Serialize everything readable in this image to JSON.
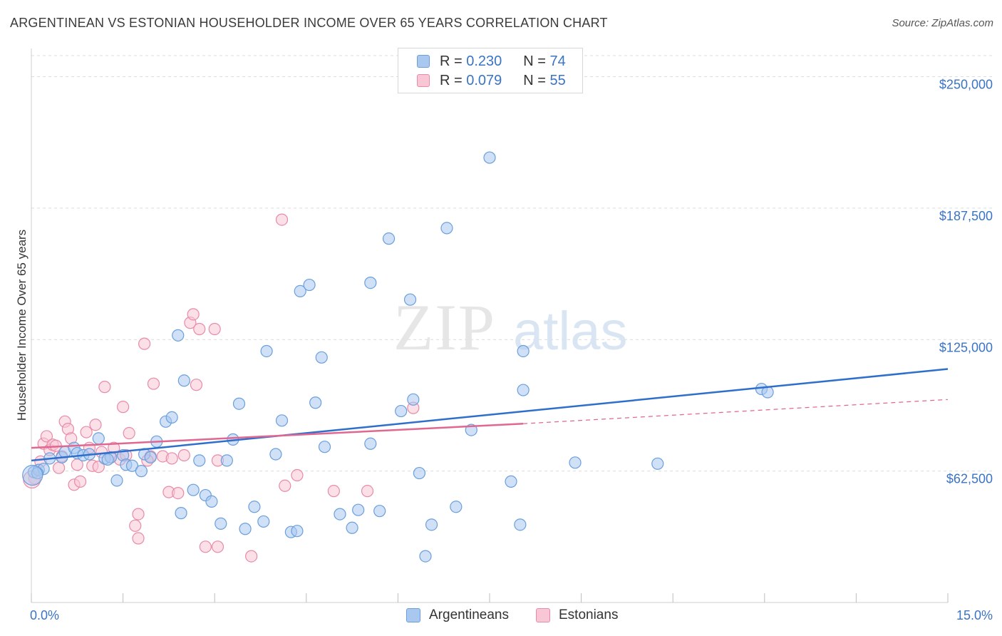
{
  "title": "ARGENTINEAN VS ESTONIAN HOUSEHOLDER INCOME OVER 65 YEARS CORRELATION CHART",
  "source": "Source: ZipAtlas.com",
  "watermark": {
    "zip": "ZIP",
    "atlas": "atlas"
  },
  "legend": {
    "r_label": "R =",
    "n_label": "N =",
    "rows": [
      {
        "series": "Argentineans",
        "r": "0.230",
        "n": "74",
        "color": "#a9c8f0",
        "edge": "#6a9fdc"
      },
      {
        "series": "Estonians",
        "r": "0.079",
        "n": "55",
        "color": "#f9c6d6",
        "edge": "#e88aa8"
      }
    ]
  },
  "bottom_legend": [
    {
      "label": "Argentineans",
      "color": "#a9c8f0",
      "edge": "#6a9fdc"
    },
    {
      "label": "Estonians",
      "color": "#f9c6d6",
      "edge": "#e88aa8"
    }
  ],
  "chart_data": {
    "type": "scatter",
    "title": "ARGENTINEAN VS ESTONIAN HOUSEHOLDER INCOME OVER 65 YEARS CORRELATION CHART",
    "xlabel": "",
    "ylabel": "Householder Income Over 65 years",
    "xlim": [
      0,
      15
    ],
    "ylim": [
      0,
      260000
    ],
    "x_tick_labels": [
      {
        "value": 0,
        "label": "0.0%"
      },
      {
        "value": 15,
        "label": "15.0%"
      }
    ],
    "y_ticks": [
      {
        "value": 62500,
        "label": "$62,500"
      },
      {
        "value": 125000,
        "label": "$125,000"
      },
      {
        "value": 187500,
        "label": "$187,500"
      },
      {
        "value": 250000,
        "label": "$250,000"
      }
    ],
    "grid": true,
    "series": [
      {
        "name": "Argentineans",
        "color": "#6a9fdc",
        "fill": "#a9c8f0",
        "line_color": "#2f6fcc",
        "trend": {
          "x0": 0,
          "y0": 67500,
          "x1": 15,
          "y1": 111000
        },
        "points": [
          [
            0.04,
            62000
          ],
          [
            0.12,
            63000
          ],
          [
            0.2,
            63500
          ],
          [
            0.3,
            68500
          ],
          [
            0.5,
            69000
          ],
          [
            0.55,
            71500
          ],
          [
            0.7,
            73500
          ],
          [
            0.75,
            71000
          ],
          [
            0.85,
            70000
          ],
          [
            0.95,
            70500
          ],
          [
            1.1,
            78000
          ],
          [
            1.2,
            68500
          ],
          [
            1.3,
            69000
          ],
          [
            1.4,
            58000
          ],
          [
            1.5,
            70000
          ],
          [
            1.55,
            65500
          ],
          [
            1.65,
            65000
          ],
          [
            1.8,
            62500
          ],
          [
            1.85,
            70500
          ],
          [
            1.95,
            69000
          ],
          [
            2.05,
            76500
          ],
          [
            2.2,
            86000
          ],
          [
            2.3,
            88000
          ],
          [
            2.4,
            127000
          ],
          [
            2.45,
            42500
          ],
          [
            2.5,
            105500
          ],
          [
            2.65,
            53500
          ],
          [
            2.75,
            67500
          ],
          [
            2.85,
            51000
          ],
          [
            2.95,
            48000
          ],
          [
            3.1,
            37500
          ],
          [
            3.2,
            67500
          ],
          [
            3.3,
            77500
          ],
          [
            3.4,
            94500
          ],
          [
            3.5,
            35000
          ],
          [
            3.65,
            45500
          ],
          [
            3.8,
            38500
          ],
          [
            3.85,
            119500
          ],
          [
            4.0,
            70500
          ],
          [
            4.1,
            86500
          ],
          [
            4.25,
            33500
          ],
          [
            4.35,
            34000
          ],
          [
            4.4,
            148000
          ],
          [
            4.55,
            151000
          ],
          [
            4.65,
            95000
          ],
          [
            4.75,
            116500
          ],
          [
            4.8,
            74000
          ],
          [
            5.05,
            42000
          ],
          [
            5.25,
            35500
          ],
          [
            5.35,
            44000
          ],
          [
            5.55,
            75500
          ],
          [
            5.55,
            152000
          ],
          [
            5.7,
            43500
          ],
          [
            5.85,
            173000
          ],
          [
            6.05,
            91000
          ],
          [
            6.2,
            144000
          ],
          [
            6.25,
            96500
          ],
          [
            6.35,
            61500
          ],
          [
            6.45,
            22000
          ],
          [
            6.55,
            37000
          ],
          [
            6.8,
            178000
          ],
          [
            6.95,
            45500
          ],
          [
            7.2,
            82000
          ],
          [
            7.5,
            211500
          ],
          [
            7.85,
            57500
          ],
          [
            8.0,
            37000
          ],
          [
            8.05,
            101000
          ],
          [
            8.05,
            119500
          ],
          [
            8.9,
            66500
          ],
          [
            10.25,
            66000
          ],
          [
            11.95,
            101500
          ],
          [
            12.05,
            100000
          ],
          [
            0.1,
            61500
          ],
          [
            1.25,
            68000
          ]
        ]
      },
      {
        "name": "Estonians",
        "color": "#e88aa8",
        "fill": "#f9c6d6",
        "line_color": "#e06890",
        "trend": {
          "x0": 0,
          "y0": 73500,
          "x1": 8.05,
          "y1": 85000
        },
        "trend_ext": {
          "x0": 8.05,
          "y0": 85000,
          "x1": 15,
          "y1": 96500
        },
        "points": [
          [
            0.05,
            59000
          ],
          [
            0.15,
            67000
          ],
          [
            0.2,
            75500
          ],
          [
            0.25,
            79000
          ],
          [
            0.3,
            72500
          ],
          [
            0.35,
            75000
          ],
          [
            0.45,
            64000
          ],
          [
            0.5,
            69500
          ],
          [
            0.55,
            86000
          ],
          [
            0.6,
            82500
          ],
          [
            0.65,
            78000
          ],
          [
            0.7,
            56000
          ],
          [
            0.75,
            65500
          ],
          [
            0.8,
            57500
          ],
          [
            0.9,
            81000
          ],
          [
            0.95,
            73500
          ],
          [
            1.0,
            65000
          ],
          [
            1.05,
            84500
          ],
          [
            1.1,
            64500
          ],
          [
            1.15,
            71500
          ],
          [
            1.2,
            102500
          ],
          [
            1.3,
            69000
          ],
          [
            1.35,
            73500
          ],
          [
            1.45,
            68000
          ],
          [
            1.5,
            93000
          ],
          [
            1.55,
            70000
          ],
          [
            1.6,
            80500
          ],
          [
            1.7,
            36500
          ],
          [
            1.75,
            30500
          ],
          [
            1.75,
            42000
          ],
          [
            1.85,
            123000
          ],
          [
            1.95,
            69500
          ],
          [
            2.0,
            104000
          ],
          [
            2.15,
            69500
          ],
          [
            2.25,
            52500
          ],
          [
            2.3,
            68500
          ],
          [
            2.4,
            52000
          ],
          [
            2.5,
            70000
          ],
          [
            2.6,
            133000
          ],
          [
            2.65,
            137000
          ],
          [
            2.7,
            103500
          ],
          [
            2.75,
            130000
          ],
          [
            2.85,
            26500
          ],
          [
            3.0,
            130000
          ],
          [
            3.05,
            26500
          ],
          [
            3.05,
            67500
          ],
          [
            3.6,
            22000
          ],
          [
            4.15,
            55500
          ],
          [
            4.1,
            182000
          ],
          [
            4.35,
            60500
          ],
          [
            4.95,
            53000
          ],
          [
            5.5,
            53000
          ],
          [
            6.25,
            92500
          ],
          [
            1.9,
            67500
          ],
          [
            0.4,
            74500
          ]
        ]
      }
    ]
  }
}
